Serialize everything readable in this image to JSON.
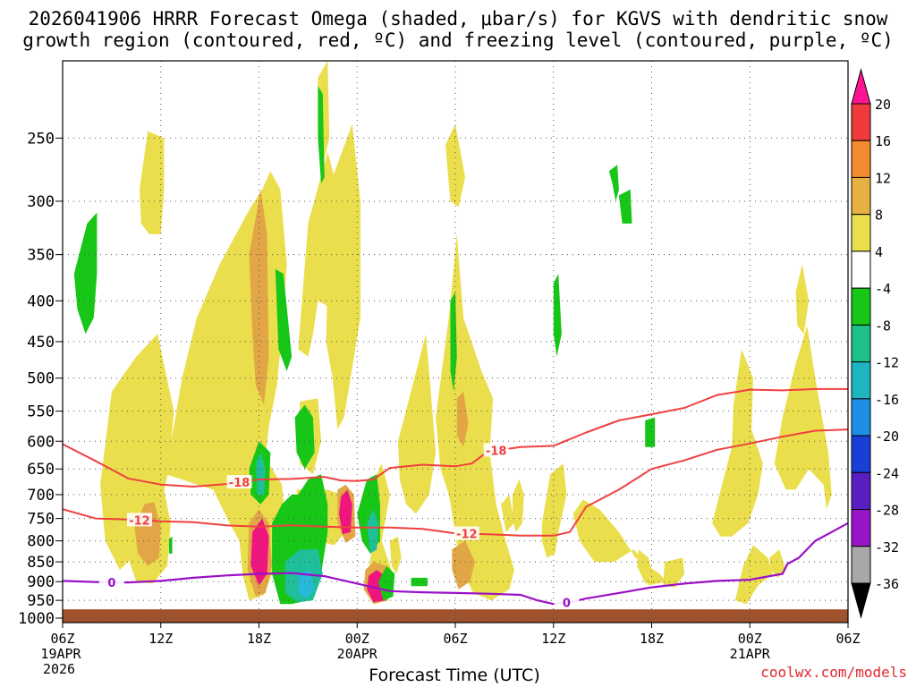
{
  "chart_data": {
    "type": "heatmap",
    "title_line1": "2026041906 HRRR Forecast Omega (shaded, μbar/s) for KGVS with dendritic snow",
    "title_line2": "growth region (contoured, red, ºC) and freezing level (contoured, purple, ºC)",
    "xlabel": "Forecast Time (UTC)",
    "ylabel": "",
    "credit": "coolwx.com/models",
    "x_ticks": [
      {
        "hour": 0,
        "label": "06Z",
        "sub": "19APR",
        "sub2": "2026"
      },
      {
        "hour": 6,
        "label": "12Z",
        "sub": "",
        "sub2": ""
      },
      {
        "hour": 12,
        "label": "18Z",
        "sub": "",
        "sub2": ""
      },
      {
        "hour": 18,
        "label": "00Z",
        "sub": "20APR",
        "sub2": ""
      },
      {
        "hour": 24,
        "label": "06Z",
        "sub": "",
        "sub2": ""
      },
      {
        "hour": 30,
        "label": "12Z",
        "sub": "",
        "sub2": ""
      },
      {
        "hour": 36,
        "label": "18Z",
        "sub": "",
        "sub2": ""
      },
      {
        "hour": 42,
        "label": "00Z",
        "sub": "21APR",
        "sub2": ""
      },
      {
        "hour": 48,
        "label": "06Z",
        "sub": "",
        "sub2": ""
      }
    ],
    "xlim": [
      0,
      48
    ],
    "y_ticks": [
      250,
      300,
      350,
      400,
      450,
      500,
      550,
      600,
      650,
      700,
      750,
      800,
      850,
      900,
      950,
      1000
    ],
    "ylim_hpa": [
      200,
      1013
    ],
    "ground_hpa": 975,
    "colorbar": {
      "levels": [
        "20",
        "16",
        "12",
        "8",
        "4",
        "-4",
        "-8",
        "-12",
        "-16",
        "-20",
        "-24",
        "-28",
        "-32",
        "-36"
      ],
      "colors": [
        "#ff1493",
        "#ee3a3a",
        "#f28a2e",
        "#e8b040",
        "#ebde4c",
        "#ffffff",
        "#17c617",
        "#1fbf8a",
        "#1fb5c0",
        "#1e8fe6",
        "#1a3fd6",
        "#5a1ec0",
        "#9a14c8",
        "#a8a8a8",
        "#000000"
      ]
    },
    "shading_colors": {
      "yellow": "#ebde4c",
      "orange": "#e2a646",
      "magenta": "#f0147e",
      "green": "#17c617",
      "teal": "#1fbf9a",
      "cyan": "#28b8d8",
      "ground": "#a0522d"
    },
    "contour_colors": {
      "dendritic": "#f04040",
      "freezing": "#9a10c8"
    },
    "contours": [
      {
        "name": "-18",
        "color": "dendritic",
        "label": "-18",
        "points": [
          [
            0,
            605
          ],
          [
            2,
            635
          ],
          [
            4,
            668
          ],
          [
            6,
            680
          ],
          [
            8,
            684
          ],
          [
            10,
            679
          ],
          [
            12,
            670
          ],
          [
            14,
            669
          ],
          [
            16,
            665
          ],
          [
            17,
            672
          ],
          [
            18,
            673
          ],
          [
            19,
            670
          ],
          [
            20,
            648
          ],
          [
            22,
            642
          ],
          [
            24,
            645
          ],
          [
            25,
            640
          ],
          [
            26,
            618
          ],
          [
            28,
            610
          ],
          [
            30,
            608
          ],
          [
            32,
            585
          ],
          [
            34,
            565
          ],
          [
            36,
            555
          ],
          [
            38,
            545
          ],
          [
            40,
            525
          ],
          [
            42,
            517
          ],
          [
            44,
            518
          ],
          [
            46,
            516
          ],
          [
            48,
            516
          ]
        ]
      },
      {
        "name": "-12",
        "color": "dendritic",
        "label": "-12",
        "points": [
          [
            0,
            730
          ],
          [
            2,
            750
          ],
          [
            4,
            752
          ],
          [
            6,
            756
          ],
          [
            8,
            758
          ],
          [
            10,
            765
          ],
          [
            12,
            768
          ],
          [
            14,
            765
          ],
          [
            16,
            768
          ],
          [
            18,
            770
          ],
          [
            20,
            770
          ],
          [
            22,
            773
          ],
          [
            24,
            783
          ],
          [
            26,
            785
          ],
          [
            28,
            788
          ],
          [
            30,
            788
          ],
          [
            31,
            780
          ],
          [
            32,
            725
          ],
          [
            34,
            690
          ],
          [
            36,
            650
          ],
          [
            38,
            634
          ],
          [
            40,
            615
          ],
          [
            42,
            604
          ],
          [
            44,
            592
          ],
          [
            46,
            582
          ],
          [
            48,
            580
          ]
        ]
      },
      {
        "name": "0",
        "color": "freezing",
        "label": "0",
        "points": [
          [
            0,
            898
          ],
          [
            2,
            901
          ],
          [
            4,
            902
          ],
          [
            6,
            898
          ],
          [
            8,
            890
          ],
          [
            10,
            884
          ],
          [
            12,
            880
          ],
          [
            14,
            878
          ],
          [
            16,
            886
          ],
          [
            18,
            905
          ],
          [
            20,
            925
          ],
          [
            22,
            928
          ],
          [
            24,
            930
          ],
          [
            26,
            932
          ],
          [
            28,
            935
          ],
          [
            29,
            950
          ],
          [
            30,
            960
          ],
          [
            31,
            955
          ],
          [
            32,
            945
          ],
          [
            34,
            930
          ],
          [
            36,
            915
          ],
          [
            38,
            905
          ],
          [
            40,
            898
          ],
          [
            42,
            895
          ],
          [
            44,
            880
          ],
          [
            44.3,
            855
          ],
          [
            45,
            840
          ],
          [
            46,
            800
          ],
          [
            47,
            780
          ],
          [
            48,
            760
          ]
        ]
      }
    ]
  }
}
